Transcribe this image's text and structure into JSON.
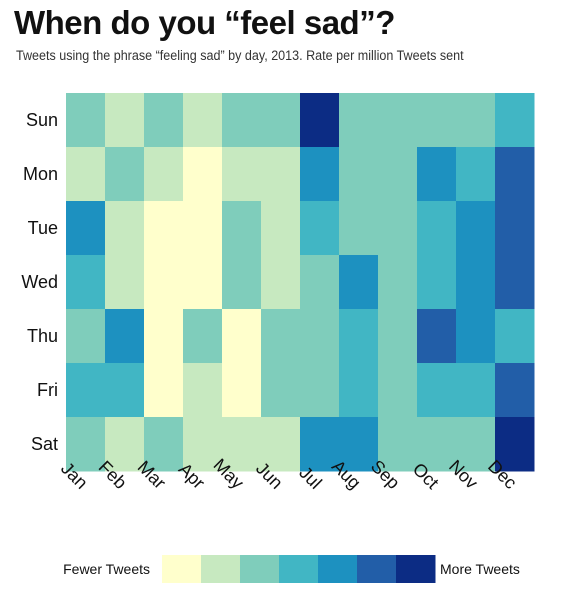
{
  "header": {
    "title": "When do you “feel sad”?",
    "subtitle": "Tweets using the phrase “feeling sad” by day, 2013. Rate per million Tweets sent"
  },
  "legend": {
    "low_label": "Fewer Tweets",
    "high_label": "More Tweets"
  },
  "colors": [
    "#ffffcc",
    "#c7e9c0",
    "#7fcdbb",
    "#41b6c4",
    "#1d91c0",
    "#225ea8",
    "#0c2c84"
  ],
  "chart_data": {
    "type": "heatmap",
    "title": "When do you “feel sad”?",
    "subtitle": "Tweets using the phrase “feeling sad” by day, 2013. Rate per million Tweets sent",
    "x_categories": [
      "Jan",
      "Feb",
      "Mar",
      "Apr",
      "May",
      "Jun",
      "Jul",
      "Aug",
      "Sep",
      "Oct",
      "Nov",
      "Dec"
    ],
    "y_categories": [
      "Sun",
      "Mon",
      "Tue",
      "Wed",
      "Thu",
      "Fri",
      "Sat"
    ],
    "scale_levels": 7,
    "scale_note": "values are color bins 0 (Fewer Tweets) to 6 (More Tweets)",
    "values": [
      [
        2,
        1,
        2,
        1,
        2,
        2,
        6,
        2,
        2,
        2,
        2,
        3
      ],
      [
        1,
        2,
        1,
        0,
        1,
        1,
        4,
        2,
        2,
        4,
        3,
        5
      ],
      [
        4,
        1,
        0,
        0,
        2,
        1,
        3,
        2,
        2,
        3,
        4,
        5
      ],
      [
        3,
        1,
        0,
        0,
        2,
        1,
        2,
        4,
        2,
        3,
        4,
        5
      ],
      [
        2,
        4,
        0,
        2,
        0,
        2,
        2,
        3,
        2,
        5,
        4,
        3
      ],
      [
        3,
        3,
        0,
        1,
        0,
        2,
        2,
        3,
        2,
        3,
        3,
        5
      ],
      [
        2,
        1,
        2,
        1,
        1,
        1,
        4,
        4,
        2,
        2,
        2,
        6
      ]
    ],
    "legend_position": "bottom"
  }
}
